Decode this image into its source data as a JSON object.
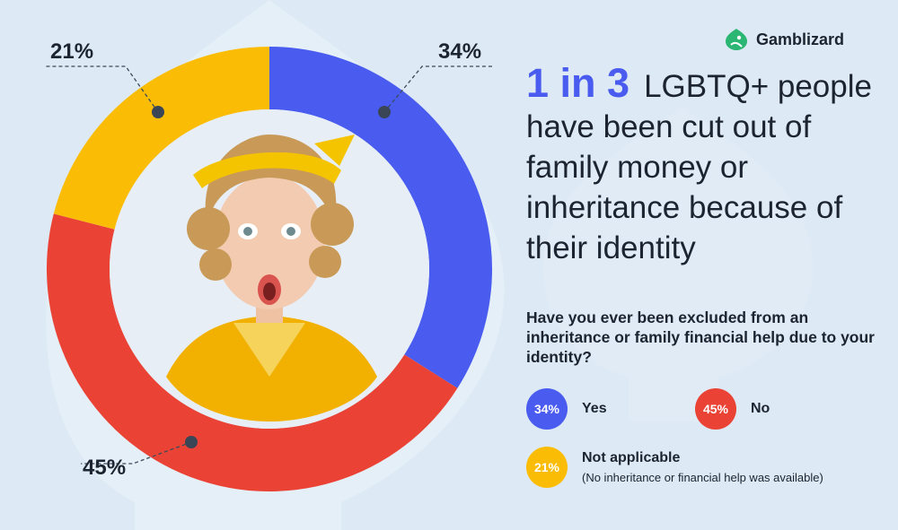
{
  "brand": {
    "name": "Gamblizard",
    "logo_icon": "lizard-icon",
    "logo_color": "#2bb673"
  },
  "headline": {
    "highlight": "1 in 3",
    "text": "LGBTQ+ people have been cut out of family money or inheritance because of their identity"
  },
  "question": "Have you ever been excluded from an inheritance or family financial help due to your identity?",
  "colors": {
    "background": "#dde9f4",
    "yes": "#4a5cf0",
    "no": "#ea4335",
    "not_applicable": "#fbbc05",
    "text": "#1b2430"
  },
  "legend": [
    {
      "pct": "34%",
      "label": "Yes",
      "color": "#4a5cf0"
    },
    {
      "pct": "45%",
      "label": "No",
      "color": "#ea4335"
    },
    {
      "pct": "21%",
      "label": "Not applicable",
      "note": "(No inheritance or financial help was available)",
      "color": "#fbbc05"
    }
  ],
  "chart_data": {
    "type": "pie",
    "style": "donut",
    "categories": [
      "Yes",
      "No",
      "Not applicable"
    ],
    "values": [
      34,
      45,
      21
    ],
    "labels": [
      "34%",
      "45%",
      "21%"
    ],
    "colors": [
      "#4a5cf0",
      "#ea4335",
      "#fbbc05"
    ],
    "start": "12 o'clock",
    "direction": "clockwise"
  }
}
